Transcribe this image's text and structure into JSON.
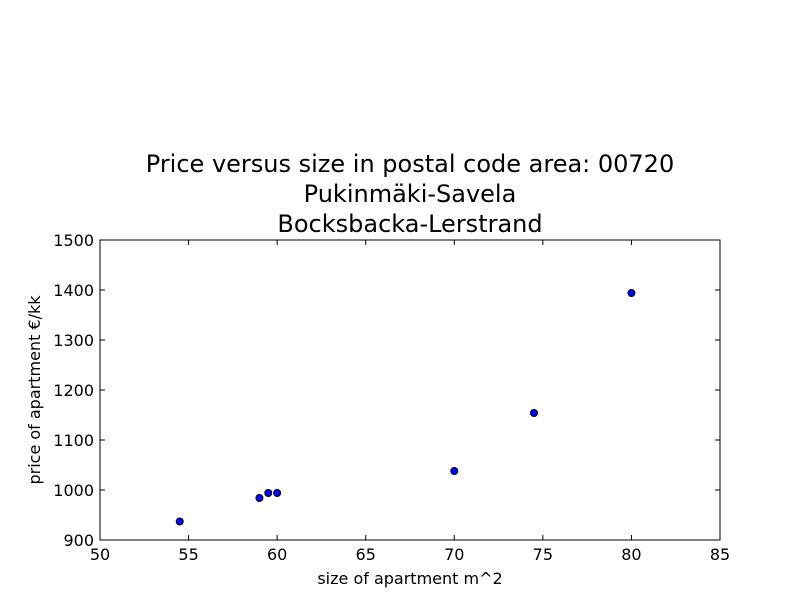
{
  "chart_data": {
    "type": "scatter",
    "title_lines": [
      "Price versus size in postal code area: 00720",
      "Pukinmäki-Savela",
      "Bocksbacka-Lerstrand"
    ],
    "xlabel": "size of apartment m^2",
    "ylabel": "price of apartment €/kk",
    "xlim": [
      50,
      85
    ],
    "ylim": [
      900,
      1500
    ],
    "xticks": [
      50,
      55,
      60,
      65,
      70,
      75,
      80,
      85
    ],
    "yticks": [
      900,
      1000,
      1100,
      1200,
      1300,
      1400,
      1500
    ],
    "grid": false,
    "marker_color": "#0000ff",
    "marker_edge_color": "#000000",
    "points": [
      {
        "x": 54.5,
        "y": 937
      },
      {
        "x": 59.0,
        "y": 984
      },
      {
        "x": 59.5,
        "y": 994
      },
      {
        "x": 60.0,
        "y": 994
      },
      {
        "x": 70.0,
        "y": 1038
      },
      {
        "x": 74.5,
        "y": 1154
      },
      {
        "x": 80.0,
        "y": 1394
      }
    ]
  }
}
